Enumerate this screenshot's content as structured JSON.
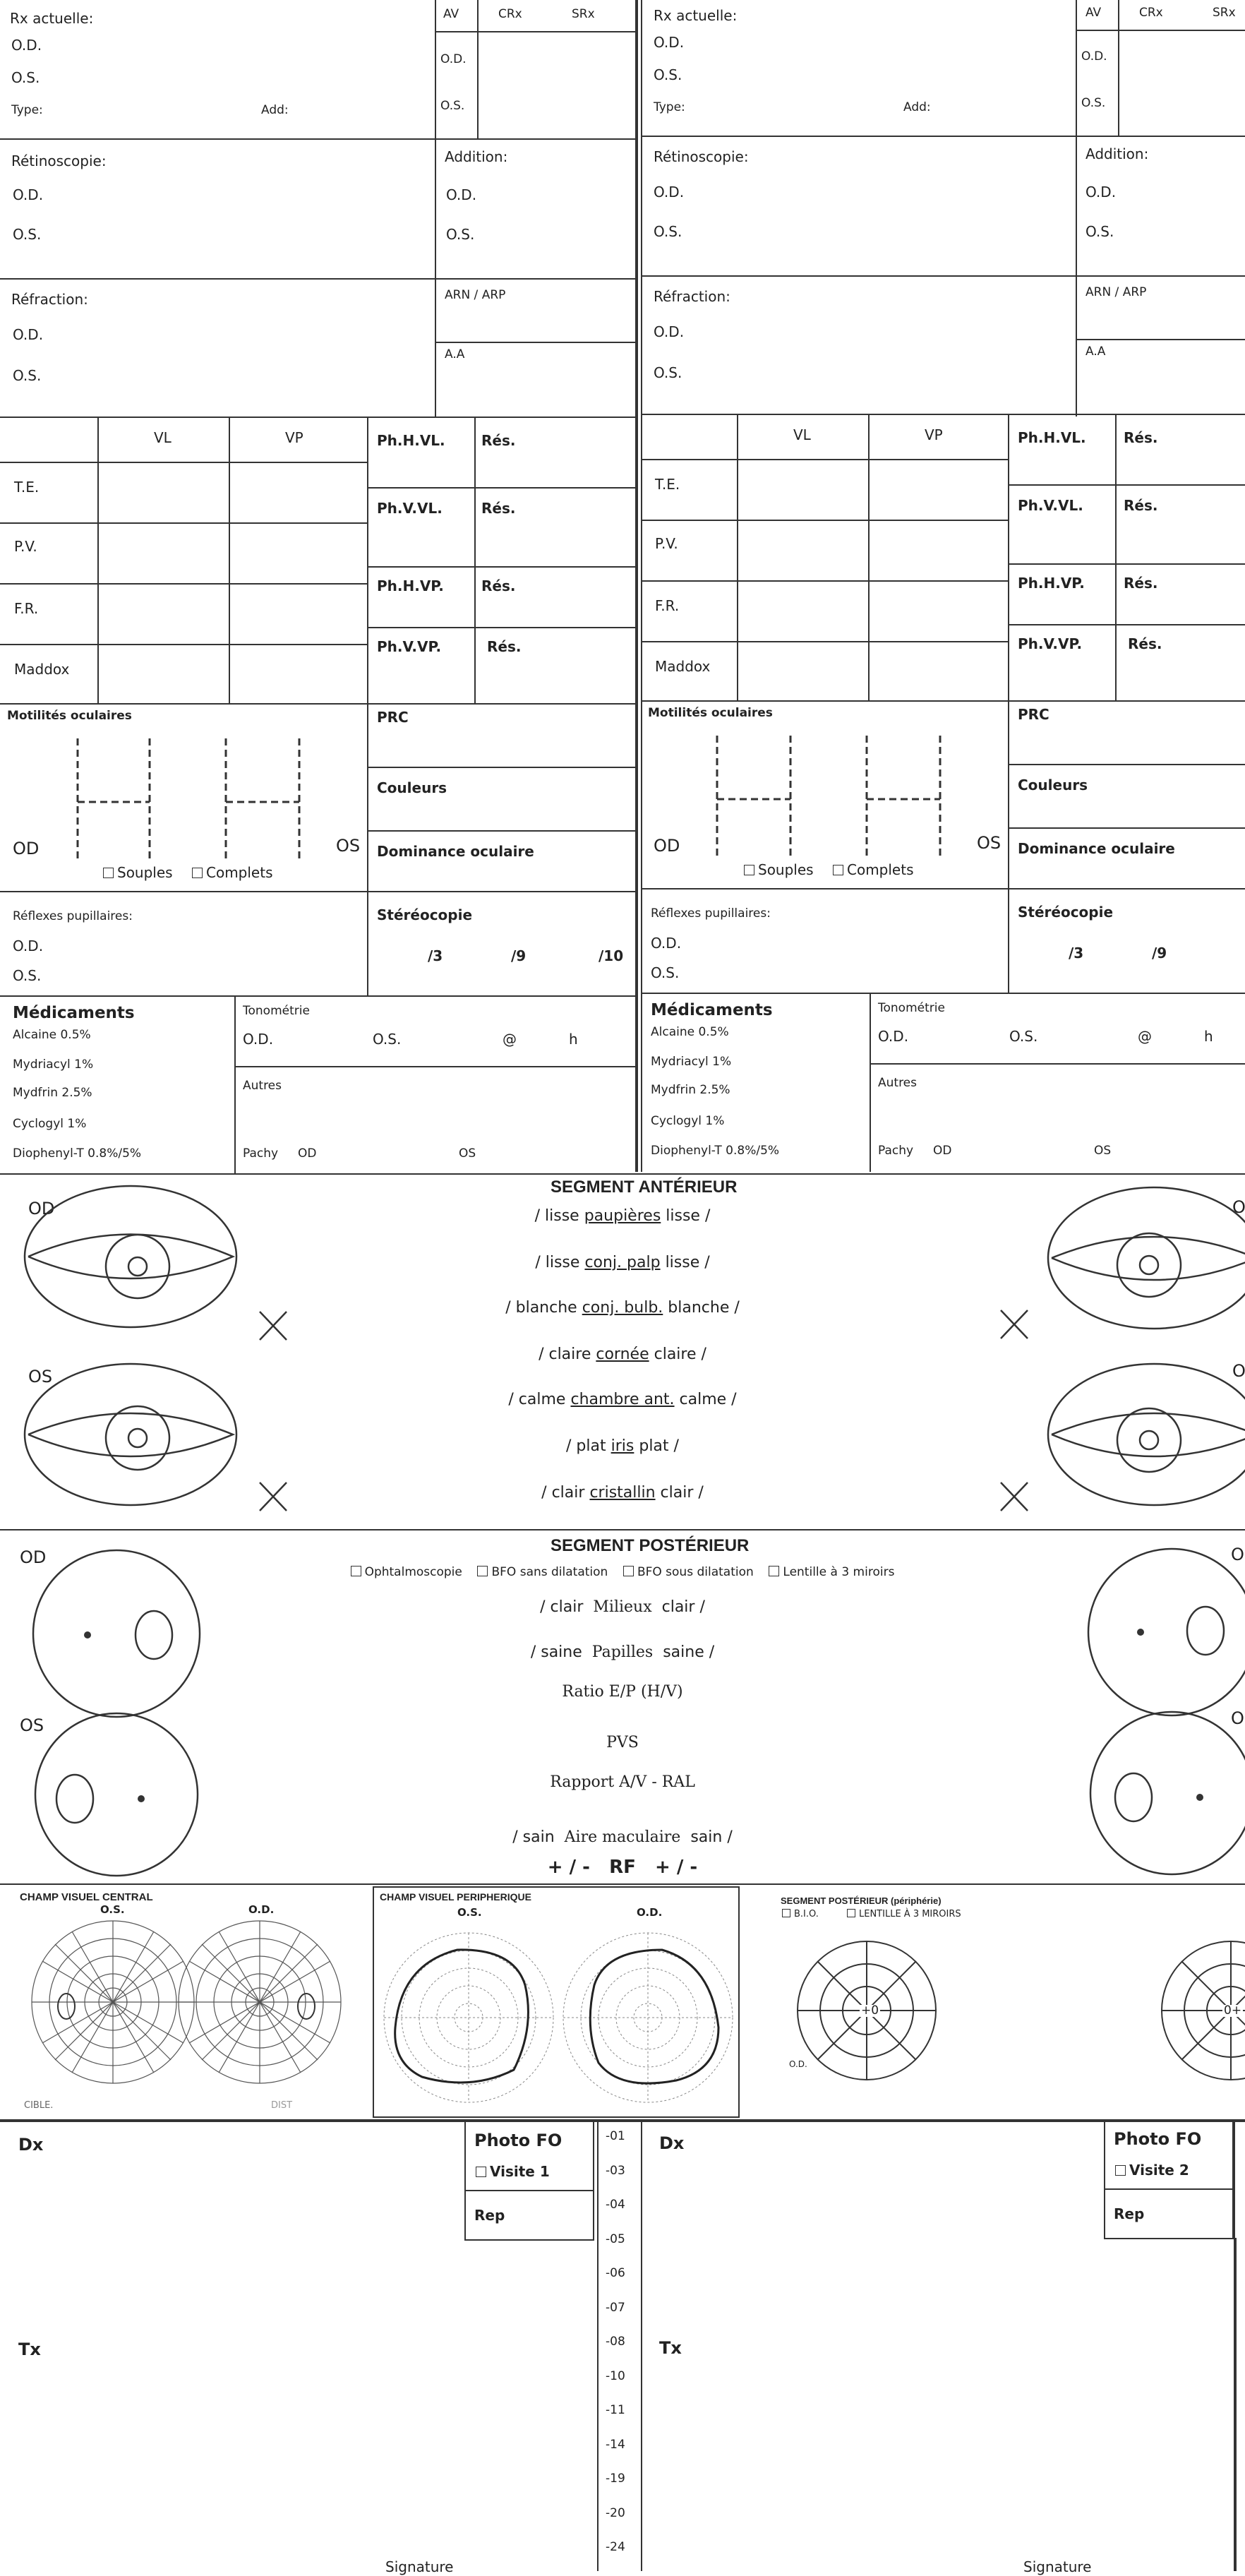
{
  "top": {
    "rx_actuelle": "Rx actuelle:",
    "od": "O.D.",
    "os": "O.S.",
    "type": "Type:",
    "add": "Add:",
    "av": "AV",
    "crx": "CRx",
    "srx": "SRx",
    "retinoscopie": "Rétinoscopie:",
    "addition": "Addition:",
    "refraction": "Réfraction:",
    "arn_arp": "ARN / ARP",
    "aa": "A.A"
  },
  "binocular": {
    "vl": "VL",
    "vp": "VP",
    "rows": [
      "T.E.",
      "P.V.",
      "F.R.",
      "Maddox"
    ],
    "phorias": [
      "Ph.H.VL.",
      "Ph.V.VL.",
      "Ph.H.VP.",
      "Ph.V.VP."
    ],
    "res": "Rés."
  },
  "motility": {
    "title": "Motilités oculaires",
    "od": "OD",
    "os": "OS",
    "souples": "Souples",
    "complets": "Complets",
    "prc": "PRC",
    "couleurs": "Couleurs",
    "dominance": "Dominance oculaire"
  },
  "reflexes": {
    "title": "Réflexes pupillaires:",
    "od": "O.D.",
    "os": "O.S.",
    "stereo": "Stéréocopie",
    "s3": "/3",
    "s9": "/9",
    "s10": "/10"
  },
  "meds": {
    "title": "Médicaments",
    "items": [
      "Alcaine 0.5%",
      "Mydriacyl 1%",
      "Mydfrin 2.5%",
      "Cyclogyl 1%",
      "Diophenyl-T 0.8%/5%"
    ],
    "tonometrie": "Tonométrie",
    "od": "O.D.",
    "os": "O.S.",
    "at": "@",
    "h": "h",
    "autres": "Autres",
    "pachy": "Pachy",
    "pachy_od": "OD",
    "pachy_os": "OS"
  },
  "anterior": {
    "title": "SEGMENT ANTÉRIEUR",
    "od": "OD",
    "os": "OS",
    "rows": [
      {
        "pre": "/ lisse",
        "mid": "paupières",
        "post": "lisse /"
      },
      {
        "pre": "/ lisse",
        "mid": "conj. palp",
        "post": "lisse /"
      },
      {
        "pre": "/ blanche",
        "mid": "conj. bulb.",
        "post": "blanche /"
      },
      {
        "pre": "/ claire",
        "mid": "cornée",
        "post": "claire /"
      },
      {
        "pre": "/ calme",
        "mid": "chambre ant.",
        "post": "calme /"
      },
      {
        "pre": "/ plat",
        "mid": "iris",
        "post": "plat /"
      },
      {
        "pre": "/ clair",
        "mid": "cristallin",
        "post": "clair /"
      }
    ]
  },
  "posterior": {
    "title": "SEGMENT POSTÉRIEUR",
    "od": "OD",
    "os": "OS",
    "opt1": "Ophtalmoscopie",
    "opt2": "BFO sans dilatation",
    "opt3": "BFO sous dilatation",
    "opt4": "Lentille à 3 miroirs",
    "milieux": "Milieux",
    "clair_a": "/ clair",
    "clair_b": "clair /",
    "papilles": "Papilles",
    "saine_a": "/ saine",
    "saine_b": "saine /",
    "ratio": "Ratio E/P (H/V)",
    "pvs": "PVS",
    "rapport": "Rapport A/V - RAL",
    "aire": "Aire maculaire",
    "sain_a": "/ sain",
    "sain_b": "sain /",
    "rf_a": "+ / -",
    "rf": "RF",
    "rf_b": "+ / -"
  },
  "fields": {
    "cv_central": "CHAMP VISUEL CENTRAL",
    "os": "O.S.",
    "od": "O.D.",
    "cible": "CIBLE.",
    "dist": "DIST",
    "cv_peripherique": "CHAMP VISUEL PERIPHERIQUE",
    "seg_post_peri": "SEGMENT POSTÉRIEUR (périphérie)",
    "bio": "B.I.O.",
    "lentille": "LENTILLE À 3 MIROIRS",
    "plus0": "+0",
    "zero_plus": "0+"
  },
  "bottom": {
    "dx": "Dx",
    "tx": "Tx",
    "photo_fo": "Photo FO",
    "visite1": "Visite 1",
    "visite2": "Visite 2",
    "rep": "Rep",
    "signature": "Signature",
    "codes": [
      "-01",
      "-03",
      "-04",
      "-05",
      "-06",
      "-07",
      "-08",
      "-10",
      "-11",
      "-14",
      "-19",
      "-20",
      "-24"
    ]
  }
}
